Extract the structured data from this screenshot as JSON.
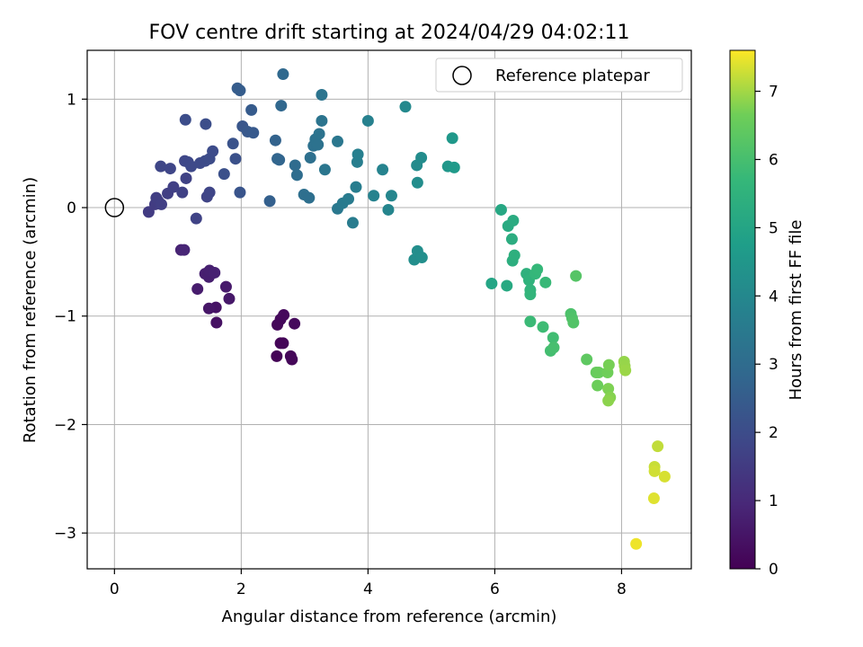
{
  "chart_data": {
    "type": "scatter",
    "title": "FOV centre drift starting at 2024/04/29 04:02:11",
    "xlabel": "Angular distance from reference (arcmin)",
    "ylabel": "Rotation from reference (arcmin)",
    "xlim": [
      -0.43,
      9.1
    ],
    "ylim": [
      -3.33,
      1.45
    ],
    "xticks": [
      0,
      2,
      4,
      6,
      8
    ],
    "yticks": [
      1,
      0,
      -1,
      -2,
      -3
    ],
    "xtick_labels": [
      "0",
      "2",
      "4",
      "6",
      "8"
    ],
    "ytick_labels": [
      "1",
      "0",
      "−1",
      "−2",
      "−3"
    ],
    "grid": true,
    "legend": {
      "position": "top-right",
      "label": "Reference platepar"
    },
    "reference_point": {
      "x": 0,
      "y": 0
    },
    "colorbar": {
      "label": "Hours from first FF file",
      "min": 0,
      "max": 7.6,
      "ticks": [
        0,
        1,
        2,
        3,
        4,
        5,
        6,
        7
      ],
      "tick_labels": [
        "0",
        "1",
        "2",
        "3",
        "4",
        "5",
        "6",
        "7"
      ],
      "colormap": "viridis"
    },
    "points": [
      {
        "x": 2.56,
        "y": -1.37,
        "h": 0.05
      },
      {
        "x": 2.62,
        "y": -1.25,
        "h": 0.08
      },
      {
        "x": 2.66,
        "y": -1.25,
        "h": 0.1
      },
      {
        "x": 2.78,
        "y": -1.37,
        "h": 0.12
      },
      {
        "x": 2.8,
        "y": -1.4,
        "h": 0.14
      },
      {
        "x": 2.57,
        "y": -1.08,
        "h": 0.16
      },
      {
        "x": 2.62,
        "y": -1.03,
        "h": 0.18
      },
      {
        "x": 2.67,
        "y": -0.99,
        "h": 0.2
      },
      {
        "x": 2.84,
        "y": -1.07,
        "h": 0.22
      },
      {
        "x": 1.61,
        "y": -1.06,
        "h": 0.4
      },
      {
        "x": 1.6,
        "y": -0.92,
        "h": 0.45
      },
      {
        "x": 1.49,
        "y": -0.93,
        "h": 0.5
      },
      {
        "x": 1.81,
        "y": -0.84,
        "h": 0.55
      },
      {
        "x": 1.76,
        "y": -0.73,
        "h": 0.6
      },
      {
        "x": 1.31,
        "y": -0.75,
        "h": 0.65
      },
      {
        "x": 1.43,
        "y": -0.61,
        "h": 0.7
      },
      {
        "x": 1.49,
        "y": -0.64,
        "h": 0.72
      },
      {
        "x": 1.5,
        "y": -0.58,
        "h": 0.75
      },
      {
        "x": 1.58,
        "y": -0.6,
        "h": 0.78
      },
      {
        "x": 1.05,
        "y": -0.39,
        "h": 0.85
      },
      {
        "x": 1.1,
        "y": -0.39,
        "h": 0.9
      },
      {
        "x": 0.54,
        "y": -0.04,
        "h": 1.5
      },
      {
        "x": 0.64,
        "y": 0.03,
        "h": 1.52
      },
      {
        "x": 0.69,
        "y": 0.06,
        "h": 1.55
      },
      {
        "x": 0.66,
        "y": 0.09,
        "h": 1.58
      },
      {
        "x": 0.74,
        "y": 0.03,
        "h": 1.6
      },
      {
        "x": 0.84,
        "y": 0.13,
        "h": 1.62
      },
      {
        "x": 0.93,
        "y": 0.19,
        "h": 1.65
      },
      {
        "x": 1.07,
        "y": 0.14,
        "h": 1.68
      },
      {
        "x": 1.13,
        "y": 0.27,
        "h": 1.7
      },
      {
        "x": 1.29,
        "y": -0.1,
        "h": 1.72
      },
      {
        "x": 1.46,
        "y": 0.1,
        "h": 1.75
      },
      {
        "x": 1.5,
        "y": 0.14,
        "h": 1.78
      },
      {
        "x": 0.73,
        "y": 0.38,
        "h": 1.8
      },
      {
        "x": 0.88,
        "y": 0.36,
        "h": 1.82
      },
      {
        "x": 1.11,
        "y": 0.43,
        "h": 1.85
      },
      {
        "x": 1.16,
        "y": 0.42,
        "h": 1.88
      },
      {
        "x": 1.21,
        "y": 0.38,
        "h": 1.9
      },
      {
        "x": 1.35,
        "y": 0.41,
        "h": 1.92
      },
      {
        "x": 1.43,
        "y": 0.43,
        "h": 1.95
      },
      {
        "x": 1.5,
        "y": 0.45,
        "h": 1.98
      },
      {
        "x": 1.55,
        "y": 0.52,
        "h": 2.0
      },
      {
        "x": 1.12,
        "y": 0.81,
        "h": 2.02
      },
      {
        "x": 1.44,
        "y": 0.77,
        "h": 2.05
      },
      {
        "x": 1.73,
        "y": 0.31,
        "h": 2.1
      },
      {
        "x": 1.91,
        "y": 0.45,
        "h": 2.15
      },
      {
        "x": 1.87,
        "y": 0.59,
        "h": 2.2
      },
      {
        "x": 1.98,
        "y": 0.14,
        "h": 2.25
      },
      {
        "x": 2.02,
        "y": 0.75,
        "h": 2.3
      },
      {
        "x": 2.1,
        "y": 0.7,
        "h": 2.35
      },
      {
        "x": 2.19,
        "y": 0.69,
        "h": 2.4
      },
      {
        "x": 2.16,
        "y": 0.9,
        "h": 2.45
      },
      {
        "x": 1.94,
        "y": 1.1,
        "h": 2.5
      },
      {
        "x": 1.98,
        "y": 1.08,
        "h": 2.52
      },
      {
        "x": 2.45,
        "y": 0.06,
        "h": 2.6
      },
      {
        "x": 2.54,
        "y": 0.62,
        "h": 2.7
      },
      {
        "x": 2.57,
        "y": 0.45,
        "h": 2.75
      },
      {
        "x": 2.6,
        "y": 0.44,
        "h": 2.8
      },
      {
        "x": 2.63,
        "y": 0.94,
        "h": 2.85
      },
      {
        "x": 2.66,
        "y": 1.23,
        "h": 2.9
      },
      {
        "x": 2.85,
        "y": 0.39,
        "h": 3.0
      },
      {
        "x": 2.88,
        "y": 0.3,
        "h": 3.05
      },
      {
        "x": 2.99,
        "y": 0.12,
        "h": 3.1
      },
      {
        "x": 3.07,
        "y": 0.09,
        "h": 3.12
      },
      {
        "x": 3.09,
        "y": 0.46,
        "h": 3.15
      },
      {
        "x": 3.14,
        "y": 0.57,
        "h": 3.18
      },
      {
        "x": 3.17,
        "y": 0.63,
        "h": 3.2
      },
      {
        "x": 3.21,
        "y": 0.58,
        "h": 3.22
      },
      {
        "x": 3.23,
        "y": 0.68,
        "h": 3.25
      },
      {
        "x": 3.27,
        "y": 0.8,
        "h": 3.28
      },
      {
        "x": 3.27,
        "y": 1.04,
        "h": 3.3
      },
      {
        "x": 3.32,
        "y": 0.35,
        "h": 3.35
      },
      {
        "x": 3.52,
        "y": 0.61,
        "h": 3.4
      },
      {
        "x": 3.52,
        "y": -0.01,
        "h": 3.45
      },
      {
        "x": 3.6,
        "y": 0.04,
        "h": 3.5
      },
      {
        "x": 3.69,
        "y": 0.08,
        "h": 3.55
      },
      {
        "x": 3.76,
        "y": -0.14,
        "h": 3.58
      },
      {
        "x": 3.81,
        "y": 0.19,
        "h": 3.6
      },
      {
        "x": 3.83,
        "y": 0.42,
        "h": 3.65
      },
      {
        "x": 3.84,
        "y": 0.49,
        "h": 3.7
      },
      {
        "x": 4.0,
        "y": 0.8,
        "h": 3.75
      },
      {
        "x": 4.09,
        "y": 0.11,
        "h": 3.8
      },
      {
        "x": 4.23,
        "y": 0.35,
        "h": 3.85
      },
      {
        "x": 4.32,
        "y": -0.02,
        "h": 3.9
      },
      {
        "x": 4.37,
        "y": 0.11,
        "h": 3.95
      },
      {
        "x": 4.59,
        "y": 0.93,
        "h": 4.05
      },
      {
        "x": 4.77,
        "y": 0.39,
        "h": 4.1
      },
      {
        "x": 4.84,
        "y": 0.46,
        "h": 4.15
      },
      {
        "x": 4.78,
        "y": 0.23,
        "h": 4.18
      },
      {
        "x": 4.73,
        "y": -0.48,
        "h": 4.2
      },
      {
        "x": 4.78,
        "y": -0.4,
        "h": 4.22
      },
      {
        "x": 4.85,
        "y": -0.46,
        "h": 4.25
      },
      {
        "x": 5.26,
        "y": 0.38,
        "h": 4.5
      },
      {
        "x": 5.33,
        "y": 0.64,
        "h": 4.55
      },
      {
        "x": 5.36,
        "y": 0.37,
        "h": 4.6
      },
      {
        "x": 5.95,
        "y": -0.7,
        "h": 5.0
      },
      {
        "x": 6.1,
        "y": -0.02,
        "h": 5.1
      },
      {
        "x": 6.19,
        "y": -0.72,
        "h": 5.15
      },
      {
        "x": 6.21,
        "y": -0.17,
        "h": 5.2
      },
      {
        "x": 6.29,
        "y": -0.12,
        "h": 5.25
      },
      {
        "x": 6.27,
        "y": -0.29,
        "h": 5.3
      },
      {
        "x": 6.28,
        "y": -0.49,
        "h": 5.35
      },
      {
        "x": 6.31,
        "y": -0.44,
        "h": 5.4
      },
      {
        "x": 6.5,
        "y": -0.61,
        "h": 5.45
      },
      {
        "x": 6.54,
        "y": -0.67,
        "h": 5.5
      },
      {
        "x": 6.56,
        "y": -0.76,
        "h": 5.55
      },
      {
        "x": 6.56,
        "y": -0.8,
        "h": 5.6
      },
      {
        "x": 6.64,
        "y": -0.61,
        "h": 5.65
      },
      {
        "x": 6.67,
        "y": -0.57,
        "h": 5.7
      },
      {
        "x": 6.8,
        "y": -0.69,
        "h": 5.75
      },
      {
        "x": 6.56,
        "y": -1.05,
        "h": 5.8
      },
      {
        "x": 6.76,
        "y": -1.1,
        "h": 5.85
      },
      {
        "x": 6.92,
        "y": -1.2,
        "h": 5.9
      },
      {
        "x": 6.88,
        "y": -1.32,
        "h": 5.95
      },
      {
        "x": 6.93,
        "y": -1.29,
        "h": 6.0
      },
      {
        "x": 7.2,
        "y": -0.98,
        "h": 6.1
      },
      {
        "x": 7.22,
        "y": -1.02,
        "h": 6.15
      },
      {
        "x": 7.24,
        "y": -1.06,
        "h": 6.2
      },
      {
        "x": 7.28,
        "y": -0.63,
        "h": 6.25
      },
      {
        "x": 7.45,
        "y": -1.4,
        "h": 6.4
      },
      {
        "x": 7.6,
        "y": -1.52,
        "h": 6.5
      },
      {
        "x": 7.64,
        "y": -1.52,
        "h": 6.55
      },
      {
        "x": 7.62,
        "y": -1.64,
        "h": 6.6
      },
      {
        "x": 7.78,
        "y": -1.52,
        "h": 6.65
      },
      {
        "x": 7.8,
        "y": -1.45,
        "h": 6.7
      },
      {
        "x": 7.79,
        "y": -1.67,
        "h": 6.75
      },
      {
        "x": 7.82,
        "y": -1.75,
        "h": 6.8
      },
      {
        "x": 7.79,
        "y": -1.78,
        "h": 6.85
      },
      {
        "x": 8.04,
        "y": -1.42,
        "h": 6.9
      },
      {
        "x": 8.05,
        "y": -1.46,
        "h": 6.92
      },
      {
        "x": 8.06,
        "y": -1.5,
        "h": 6.95
      },
      {
        "x": 8.57,
        "y": -2.2,
        "h": 7.2
      },
      {
        "x": 8.52,
        "y": -2.39,
        "h": 7.25
      },
      {
        "x": 8.52,
        "y": -2.43,
        "h": 7.3
      },
      {
        "x": 8.68,
        "y": -2.48,
        "h": 7.35
      },
      {
        "x": 8.51,
        "y": -2.68,
        "h": 7.4
      },
      {
        "x": 8.23,
        "y": -3.1,
        "h": 7.5
      }
    ]
  }
}
